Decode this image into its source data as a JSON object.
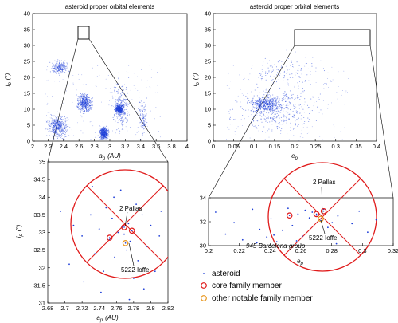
{
  "figure": {
    "panels": [
      {
        "id": "top-left",
        "title": "asteroid proper orbital elements",
        "xlabel_sym": "a",
        "xlabel_sub": "p",
        "xlabel_unit": "(AU)",
        "ylabel_sym": "i",
        "ylabel_sub": "p",
        "ylabel_unit": "(°)",
        "xticks": [
          "2",
          "2.2",
          "2.4",
          "2.6",
          "2.8",
          "3",
          "3.2",
          "3.4",
          "3.6",
          "3.8",
          "4"
        ],
        "yticks": [
          "0",
          "5",
          "10",
          "15",
          "20",
          "25",
          "30",
          "35",
          "40"
        ]
      },
      {
        "id": "top-right",
        "title": "asteroid proper orbital elements",
        "xlabel_sym": "e",
        "xlabel_sub": "p",
        "ylabel_sym": "i",
        "ylabel_sub": "p",
        "ylabel_unit": "(°)",
        "xticks": [
          "0",
          "0.05",
          "0.1",
          "0.15",
          "0.2",
          "0.25",
          "0.3",
          "0.35",
          "0.4"
        ],
        "yticks": [
          "0",
          "5",
          "10",
          "15",
          "20",
          "25",
          "30",
          "35",
          "40"
        ]
      },
      {
        "id": "bottom-left",
        "xlabel_sym": "a",
        "xlabel_sub": "p",
        "xlabel_unit": "(AU)",
        "ylabel_sym": "i",
        "ylabel_sub": "p",
        "ylabel_unit": "(°)",
        "xticks": [
          "2.68",
          "2.7",
          "2.72",
          "2.74",
          "2.76",
          "2.78",
          "2.8",
          "2.82"
        ],
        "yticks": [
          "31",
          "31.5",
          "32",
          "32.5",
          "33",
          "33.5",
          "34",
          "34.5",
          "35"
        ],
        "label_pallas": "2 Pallas",
        "label_ioffe": "5222 Ioffe"
      },
      {
        "id": "bottom-right",
        "xlabel_sym": "e",
        "xlabel_sub": "p",
        "xticks": [
          "0.2",
          "0.22",
          "0.24",
          "0.26",
          "0.28",
          "0.3",
          "0.32"
        ],
        "yticks": [
          "30",
          "32",
          "34"
        ],
        "label_pallas": "2 Pallas",
        "label_ioffe": "5222 Ioffe",
        "label_group": "945 Barcelona group"
      }
    ],
    "legend": [
      {
        "label": "asteroid",
        "marker": "dot",
        "color": "#1f3fd8"
      },
      {
        "label": "core family member",
        "marker": "ring",
        "color": "#e01a1a"
      },
      {
        "label": "other notable family member",
        "marker": "ring",
        "color": "#e8961e"
      }
    ]
  },
  "chart_data": [
    {
      "type": "scatter",
      "title": "asteroid proper orbital elements",
      "xlabel": "a_p (AU)",
      "ylabel": "i_p (°)",
      "xlim": [
        2,
        4
      ],
      "ylim": [
        0,
        40
      ],
      "grid": false,
      "density_clusters": [
        {
          "a_range": [
            2.15,
            2.5
          ],
          "i_range": [
            0,
            9
          ],
          "density": "high"
        },
        {
          "a_range": [
            2.2,
            2.5
          ],
          "i_range": [
            20,
            26
          ],
          "density": "medium"
        },
        {
          "a_range": [
            2.55,
            2.8
          ],
          "i_range": [
            8,
            16
          ],
          "density": "high"
        },
        {
          "a_range": [
            2.85,
            3.0
          ],
          "i_range": [
            0,
            5
          ],
          "density": "high"
        },
        {
          "a_range": [
            3.0,
            3.3
          ],
          "i_range": [
            0,
            22
          ],
          "density": "medium"
        },
        {
          "a_range": [
            3.05,
            3.2
          ],
          "i_range": [
            8,
            12
          ],
          "density": "high"
        },
        {
          "a_range": [
            3.35,
            3.5
          ],
          "i_range": [
            0,
            15
          ],
          "density": "low"
        }
      ],
      "zoom_box": {
        "x": [
          2.68,
          2.82
        ],
        "y": [
          31,
          35
        ]
      }
    },
    {
      "type": "scatter",
      "title": "asteroid proper orbital elements",
      "xlabel": "e_p",
      "ylabel": "i_p (°)",
      "xlim": [
        0,
        0.4
      ],
      "ylim": [
        0,
        40
      ],
      "grid": false,
      "density_clusters": [
        {
          "e_range": [
            0.02,
            0.3
          ],
          "i_range": [
            0,
            20
          ],
          "density": "high"
        },
        {
          "e_range": [
            0.08,
            0.18
          ],
          "i_range": [
            8,
            15
          ],
          "density": "high"
        },
        {
          "e_range": [
            0.05,
            0.3
          ],
          "i_range": [
            15,
            30
          ],
          "density": "low"
        }
      ],
      "zoom_box": {
        "x": [
          0.2,
          0.33
        ],
        "y": [
          30,
          35
        ]
      }
    },
    {
      "type": "scatter",
      "xlabel": "a_p (AU)",
      "ylabel": "i_p (°)",
      "xlim": [
        2.68,
        2.82
      ],
      "ylim": [
        31,
        35
      ],
      "series": [
        {
          "name": "asteroid",
          "points": [
            [
              2.695,
              33.6
            ],
            [
              2.71,
              33.2
            ],
            [
              2.705,
              32.1
            ],
            [
              2.72,
              32.9
            ],
            [
              2.73,
              33.5
            ],
            [
              2.735,
              32.4
            ],
            [
              2.74,
              33.1
            ],
            [
              2.745,
              31.9
            ],
            [
              2.748,
              33.7
            ],
            [
              2.752,
              32.8
            ],
            [
              2.755,
              33.4
            ],
            [
              2.758,
              32.3
            ],
            [
              2.762,
              33.0
            ],
            [
              2.765,
              34.2
            ],
            [
              2.767,
              33.15
            ],
            [
              2.769,
              32.95
            ],
            [
              2.772,
              32.5
            ],
            [
              2.774,
              33.25
            ],
            [
              2.776,
              32.75
            ],
            [
              2.78,
              31.7
            ],
            [
              2.783,
              33.8
            ],
            [
              2.785,
              32.2
            ],
            [
              2.79,
              33.5
            ],
            [
              2.795,
              32.6
            ],
            [
              2.8,
              33.2
            ],
            [
              2.805,
              31.9
            ],
            [
              2.81,
              32.9
            ],
            [
              2.722,
              31.6
            ],
            [
              2.792,
              31.4
            ],
            [
              2.732,
              34.3
            ],
            [
              2.757,
              34.0
            ],
            [
              2.812,
              33.6
            ],
            [
              2.742,
              31.3
            ],
            [
              2.775,
              31.1
            ]
          ]
        },
        {
          "name": "core family member",
          "points": [
            [
              2.752,
              32.85
            ],
            [
              2.778,
              33.05
            ],
            [
              2.769,
              33.15
            ]
          ]
        },
        {
          "name": "other notable family member",
          "points": [
            [
              2.7705,
              32.7
            ]
          ]
        }
      ],
      "annotations": [
        {
          "text": "2 Pallas",
          "x": 2.7715,
          "y": 33.2
        },
        {
          "text": "5222 Ioffe",
          "x": 2.7705,
          "y": 32.7
        }
      ]
    },
    {
      "type": "scatter",
      "xlabel": "e_p",
      "xlim": [
        0.2,
        0.33
      ],
      "ylim": [
        30,
        35
      ],
      "series": [
        {
          "name": "asteroid",
          "points": [
            [
              0.205,
              33.5
            ],
            [
              0.212,
              31.2
            ],
            [
              0.218,
              32.4
            ],
            [
              0.224,
              30.6
            ],
            [
              0.231,
              33.8
            ],
            [
              0.236,
              31.7
            ],
            [
              0.241,
              30.9
            ],
            [
              0.244,
              32.8
            ],
            [
              0.248,
              30.4
            ],
            [
              0.252,
              31.6
            ],
            [
              0.256,
              33.9
            ],
            [
              0.259,
              32.1
            ],
            [
              0.263,
              33.3
            ],
            [
              0.266,
              31.0
            ],
            [
              0.268,
              33.7
            ],
            [
              0.271,
              32.9
            ],
            [
              0.273,
              33.5
            ],
            [
              0.276,
              33.2
            ],
            [
              0.279,
              32.6
            ],
            [
              0.281,
              33.8
            ],
            [
              0.284,
              31.9
            ],
            [
              0.287,
              32.4
            ],
            [
              0.291,
              33.1
            ],
            [
              0.296,
              30.8
            ],
            [
              0.301,
              32.3
            ],
            [
              0.306,
              33.6
            ],
            [
              0.312,
              31.4
            ],
            [
              0.318,
              32.7
            ],
            [
              0.234,
              30.3
            ],
            [
              0.246,
              31.1
            ],
            [
              0.262,
              30.5
            ],
            [
              0.29,
              30.2
            ]
          ]
        },
        {
          "name": "core family member",
          "points": [
            [
              0.257,
              33.15
            ],
            [
              0.276,
              33.3
            ],
            [
              0.281,
              33.6
            ]
          ]
        },
        {
          "name": "other notable family member",
          "points": [
            [
              0.279,
              32.8
            ]
          ]
        }
      ],
      "annotations": [
        {
          "text": "2 Pallas",
          "x": 0.279,
          "y": 33.2
        },
        {
          "text": "5222 Ioffe",
          "x": 0.279,
          "y": 32.8
        },
        {
          "text": "945 Barcelona group",
          "x": 0.245,
          "y": 30.0
        }
      ]
    }
  ]
}
